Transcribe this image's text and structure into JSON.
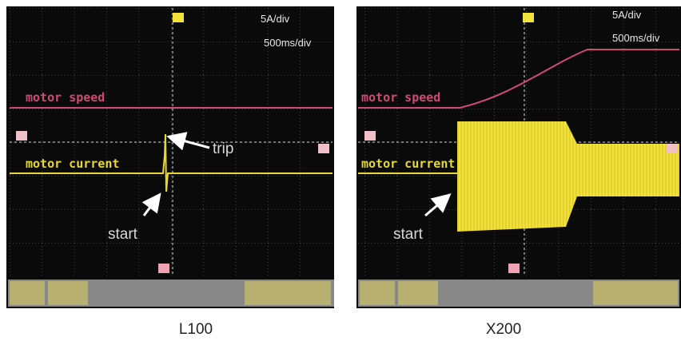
{
  "panels": [
    {
      "label": "L100",
      "scale_current": "5A/div",
      "scale_time": "500ms/div",
      "trace_labels": [
        "motor speed",
        "motor current"
      ],
      "annotations": [
        "trip",
        "start"
      ]
    },
    {
      "label": "X200",
      "scale_current": "5A/div",
      "scale_time": "500ms/div",
      "trace_labels": [
        "motor speed",
        "motor current"
      ],
      "annotations": [
        "start"
      ]
    }
  ]
}
